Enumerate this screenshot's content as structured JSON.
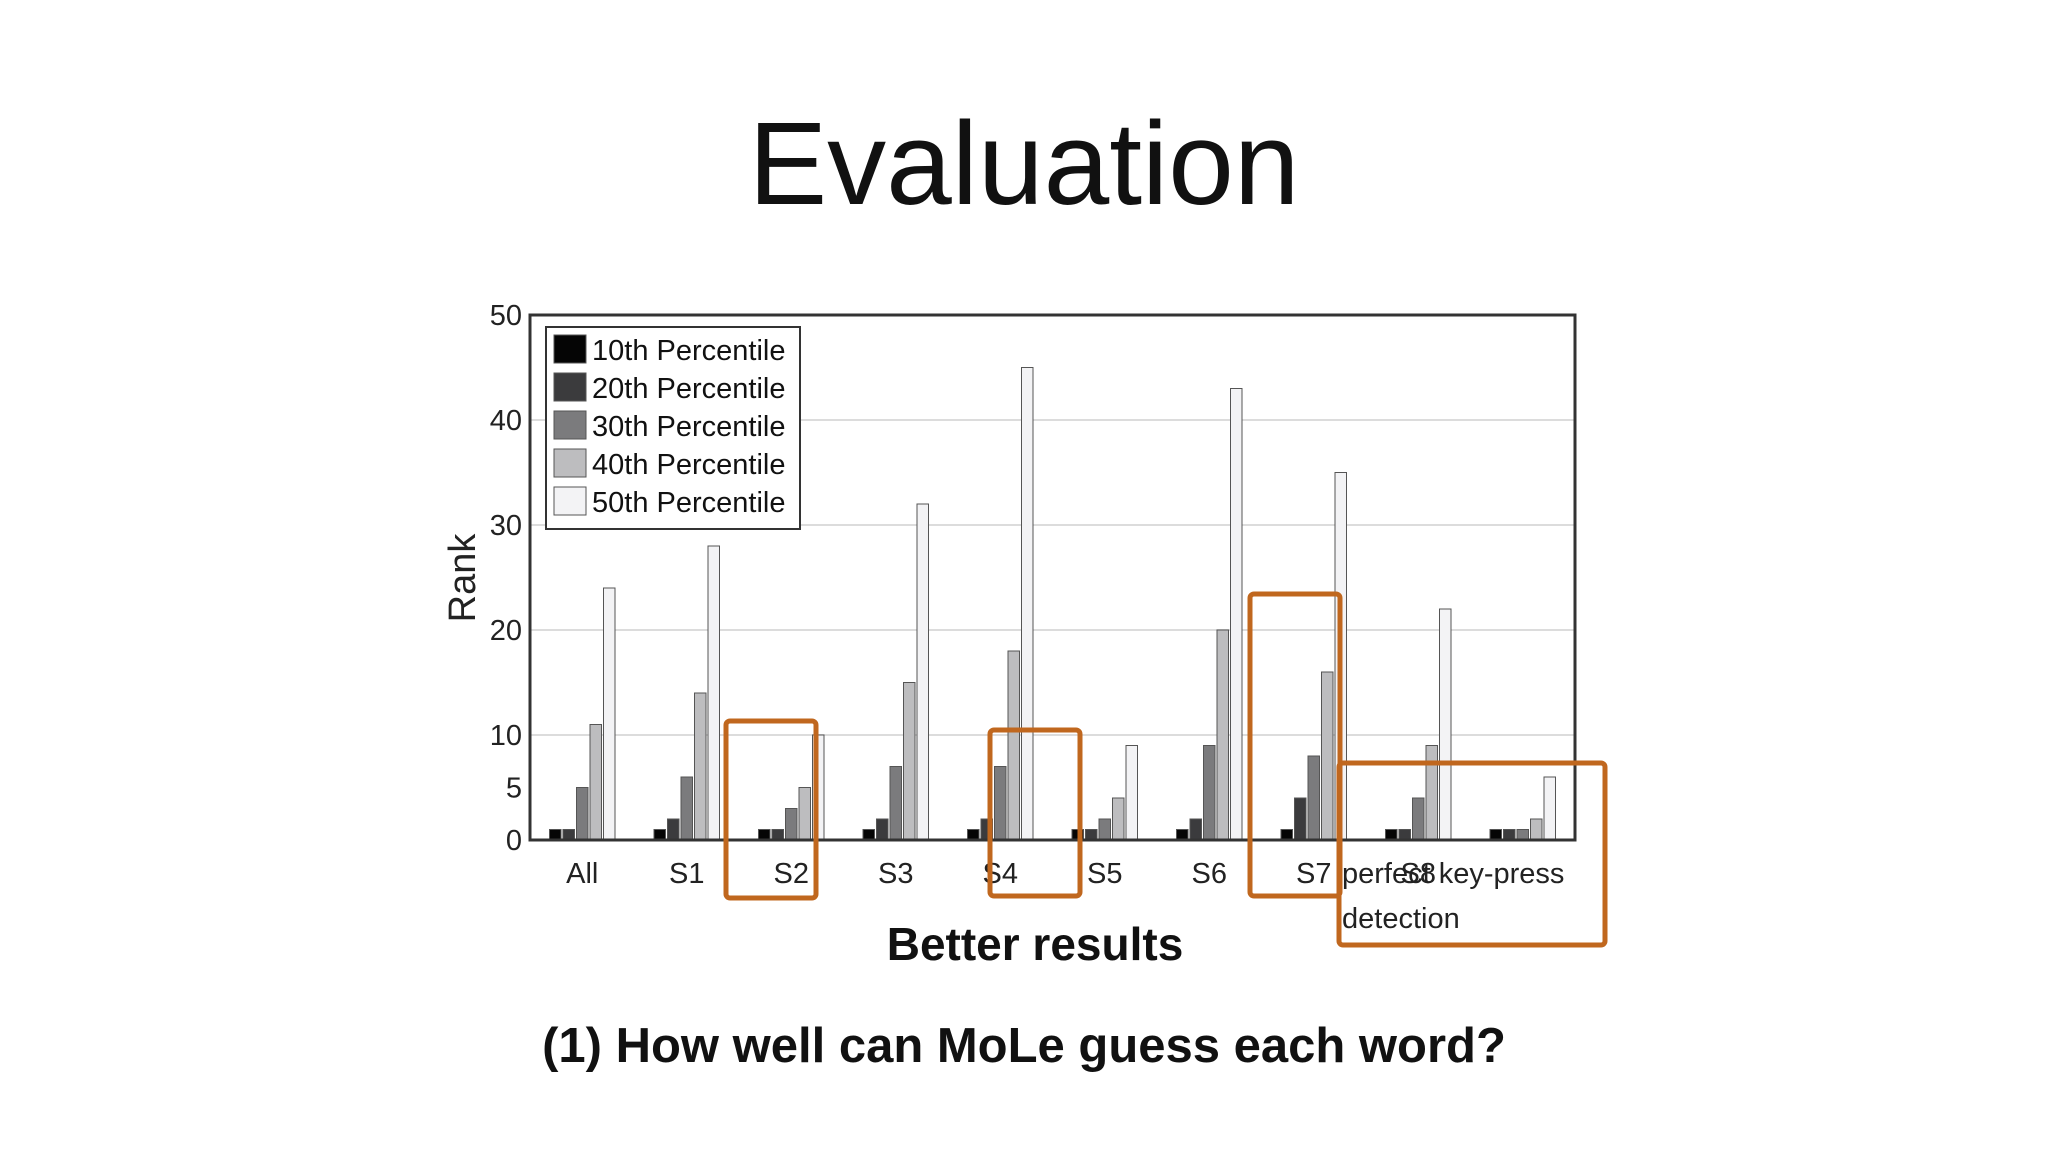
{
  "slide": {
    "title": "Evaluation",
    "caption": "(1) How well can MoLe guess each word?"
  },
  "chart_data": {
    "type": "bar",
    "ylabel": "Rank",
    "xlabel": "Better results",
    "ylim": [
      0,
      50
    ],
    "yticks": [
      0,
      5,
      10,
      20,
      30,
      40,
      50
    ],
    "grid": true,
    "legend_position": "top-left",
    "categories": [
      "All",
      "S1",
      "S2",
      "S3",
      "S4",
      "S5",
      "S6",
      "S7",
      "S8",
      "perfect key-press detection"
    ],
    "category_labels": [
      [
        "All"
      ],
      [
        "S1"
      ],
      [
        "S2"
      ],
      [
        "S3"
      ],
      [
        "S4"
      ],
      [
        "S5"
      ],
      [
        "S6"
      ],
      [
        "S7"
      ],
      [
        "S8"
      ],
      [
        "perfect key-press",
        "detection"
      ]
    ],
    "series": [
      {
        "name": "10th Percentile",
        "color": "#050505",
        "values": [
          1,
          1,
          1,
          1,
          1,
          1,
          1,
          1,
          1,
          1
        ]
      },
      {
        "name": "20th Percentile",
        "color": "#3b3b3d",
        "values": [
          1,
          2,
          1,
          2,
          2,
          1,
          2,
          4,
          1,
          1
        ]
      },
      {
        "name": "30th Percentile",
        "color": "#7b7b7d",
        "values": [
          5,
          6,
          3,
          7,
          7,
          2,
          9,
          8,
          4,
          1
        ]
      },
      {
        "name": "40th Percentile",
        "color": "#bdbdbf",
        "values": [
          11,
          14,
          5,
          15,
          18,
          4,
          20,
          16,
          9,
          2
        ]
      },
      {
        "name": "50th Percentile",
        "color": "#f3f3f5",
        "values": [
          24,
          28,
          10,
          32,
          45,
          9,
          43,
          35,
          22,
          6
        ]
      }
    ],
    "highlighted_categories": [
      "S2",
      "S5",
      "S8",
      "perfect key-press detection"
    ],
    "highlight_color": "#c0671e"
  }
}
